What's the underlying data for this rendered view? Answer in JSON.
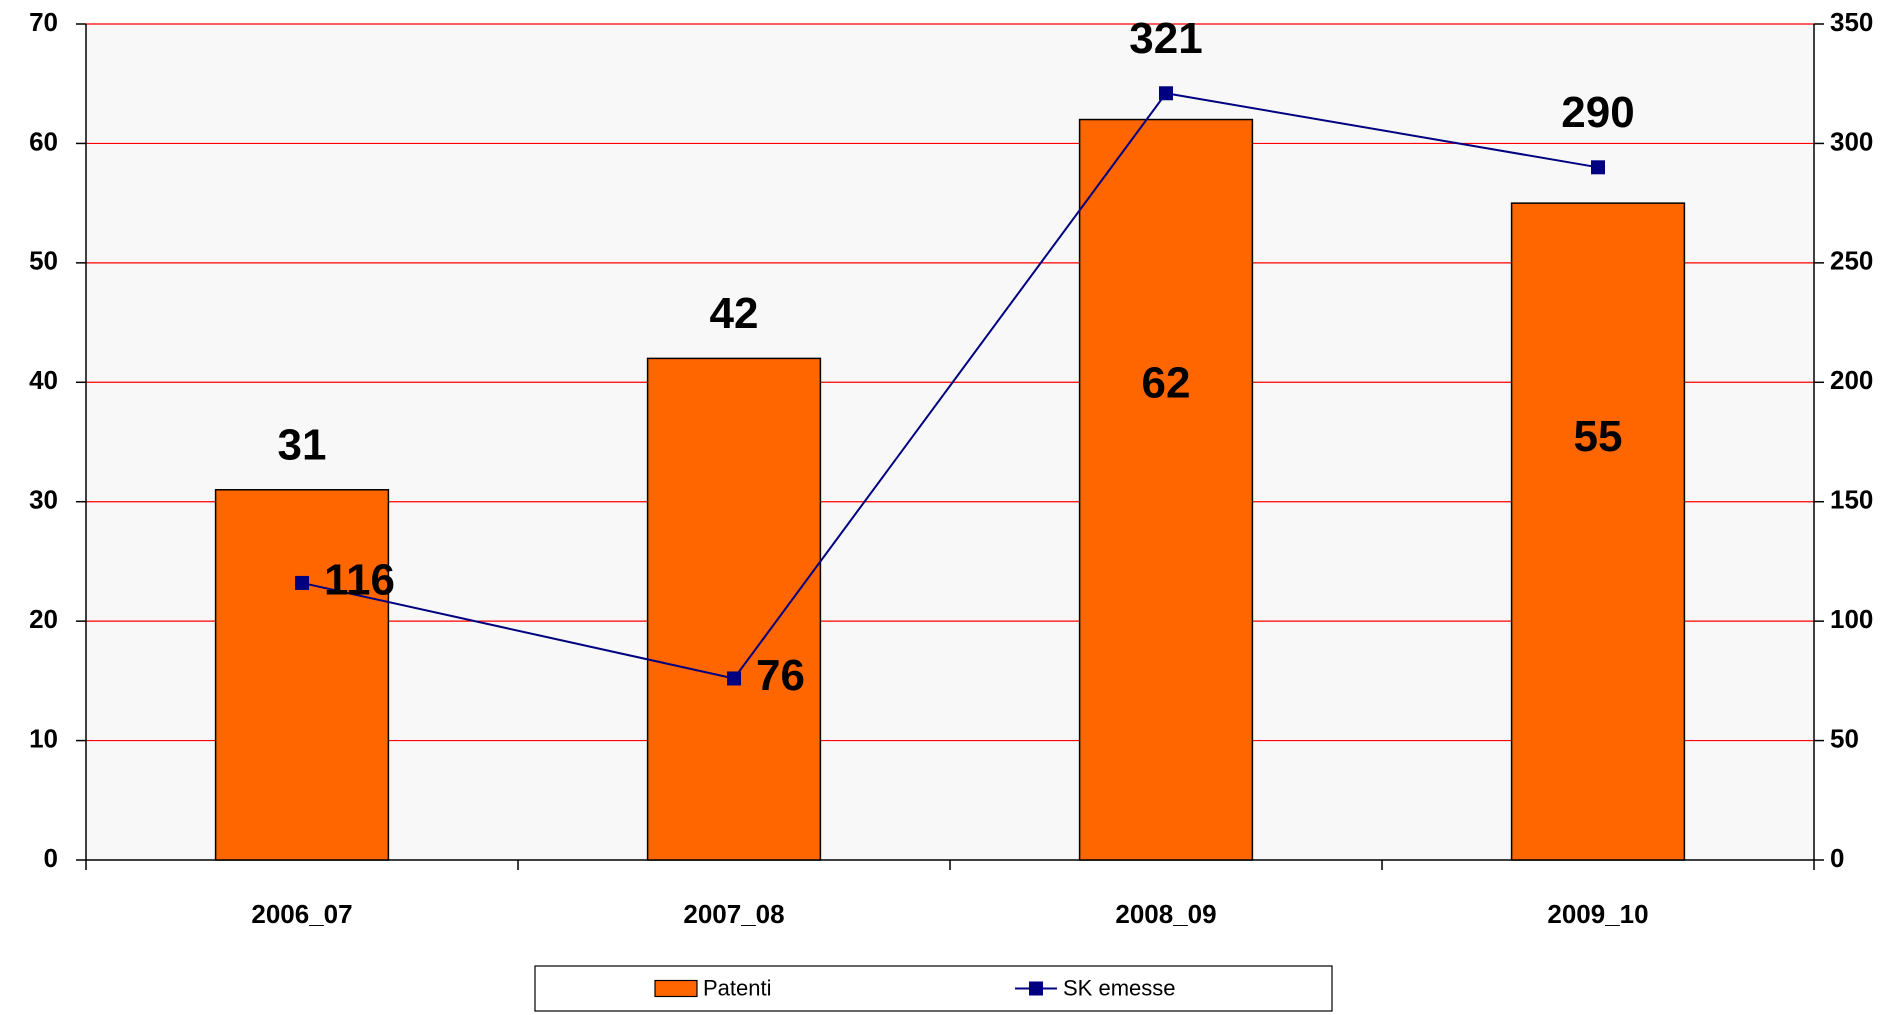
{
  "chart_data": {
    "type": "bar",
    "categories": [
      "2006_07",
      "2007_08",
      "2008_09",
      "2009_10"
    ],
    "series": [
      {
        "name": "Patenti",
        "color": "#ff6600",
        "values": [
          31,
          42,
          62,
          55
        ]
      },
      {
        "name": "SK emesse",
        "type": "line",
        "axis": "y2",
        "color": "#000080",
        "values": [
          116,
          76,
          321,
          290
        ]
      }
    ],
    "ylim": [
      0,
      70
    ],
    "yticks": [
      0,
      10,
      20,
      30,
      40,
      50,
      60,
      70
    ],
    "y2lim": [
      0,
      350
    ],
    "y2ticks": [
      0,
      50,
      100,
      150,
      200,
      250,
      300,
      350
    ],
    "grid": true,
    "grid_color": "#ff0000",
    "legend": "bottom"
  }
}
